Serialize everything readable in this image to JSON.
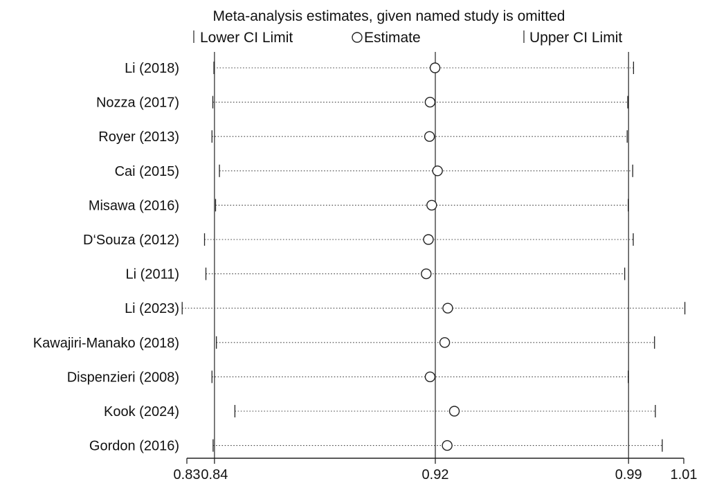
{
  "chart_data": {
    "type": "scatter",
    "title": "Meta-analysis estimates, given named study is omitted",
    "legend": {
      "placement": "top",
      "items": [
        {
          "label": "Lower CI Limit",
          "symbol": "tick"
        },
        {
          "label": "Estimate",
          "symbol": "circle"
        },
        {
          "label": "Upper CI Limit",
          "symbol": "tick"
        }
      ]
    },
    "x_axis": {
      "range": [
        0.83,
        1.01
      ],
      "ticks": [
        0.83,
        0.84,
        0.92,
        0.99,
        1.01
      ],
      "tick_labels": [
        "0.83",
        "0.84",
        "0.92",
        "0.99",
        "1.01"
      ],
      "reference_lines": [
        0.84,
        0.92,
        0.99
      ]
    },
    "studies": [
      {
        "label": "Li (2018)",
        "lower": 0.8398,
        "estimate": 0.9199,
        "upper": 0.9918
      },
      {
        "label": "Nozza (2017)",
        "lower": 0.8394,
        "estimate": 0.9181,
        "upper": 0.9897
      },
      {
        "label": "Royer (2013)",
        "lower": 0.8391,
        "estimate": 0.9179,
        "upper": 0.9895
      },
      {
        "label": "Cai (2015)",
        "lower": 0.8418,
        "estimate": 0.9208,
        "upper": 0.9915
      },
      {
        "label": "Misawa (2016)",
        "lower": 0.8404,
        "estimate": 0.9187,
        "upper": 0.9899
      },
      {
        "label": "D‘Souza (2012)",
        "lower": 0.8364,
        "estimate": 0.9175,
        "upper": 0.9917
      },
      {
        "label": "Li (2011)",
        "lower": 0.8369,
        "estimate": 0.9167,
        "upper": 0.9886
      },
      {
        "label": "Li (2023)",
        "lower": 0.8283,
        "estimate": 0.9245,
        "upper": 1.0104
      },
      {
        "label": "Kawajiri-Manako (2018)",
        "lower": 0.8407,
        "estimate": 0.9234,
        "upper": 0.9994
      },
      {
        "label": "Dispenzieri (2008)",
        "lower": 0.8391,
        "estimate": 0.9181,
        "upper": 0.9899
      },
      {
        "label": "Kook (2024)",
        "lower": 0.8474,
        "estimate": 0.9269,
        "upper": 0.9997
      },
      {
        "label": "Gordon (2016)",
        "lower": 0.8395,
        "estimate": 0.9243,
        "upper": 1.0022
      }
    ]
  }
}
